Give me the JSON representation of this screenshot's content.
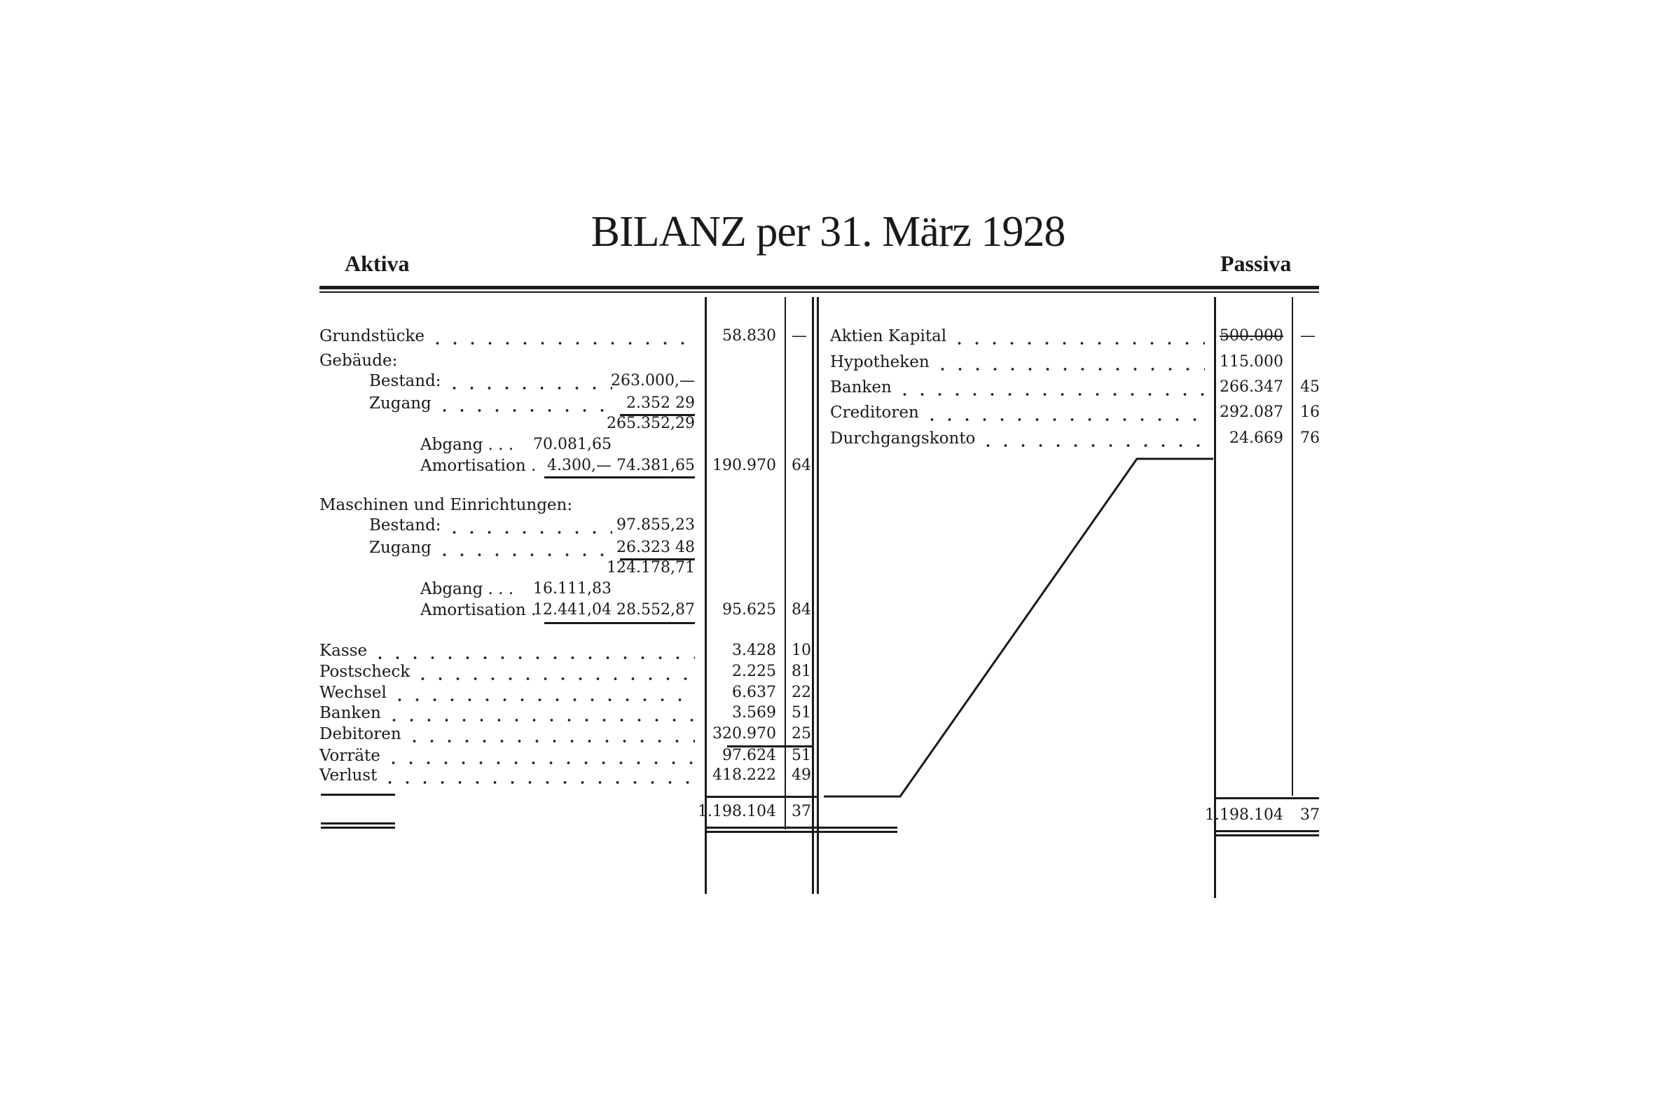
{
  "title": "BILANZ per 31. März 1928",
  "aktiva_label": "Aktiva",
  "passiva_label": "Passiva",
  "aktiva": {
    "grundstuecke": {
      "label": "Grundstücke",
      "value": "58.830",
      "cents": "—"
    },
    "gebaeude": {
      "label": "Gebäude:",
      "bestand": {
        "label": "Bestand:",
        "amount": "263.000,—"
      },
      "zugang": {
        "label": "Zugang",
        "amount": "2.352 29"
      },
      "subtotal": "265.352,29",
      "abgang": {
        "label": "Abgang . . .",
        "amount": "70.081,65"
      },
      "amortisation": {
        "label": "Amortisation .",
        "amount": "4.300,—",
        "sum": "74.381,65"
      },
      "value": "190.970",
      "cents": "64"
    },
    "maschinen": {
      "label": "Maschinen und Einrichtungen:",
      "bestand": {
        "label": "Bestand:",
        "amount": "97.855,23"
      },
      "zugang": {
        "label": "Zugang",
        "amount": "26.323 48"
      },
      "subtotal": "124.178,71",
      "abgang": {
        "label": "Abgang . . .",
        "amount": "16.111,83"
      },
      "amortisation": {
        "label": "Amortisation .",
        "amount": "12.441,04",
        "sum": "28.552,87"
      },
      "value": "95.625",
      "cents": "84"
    },
    "items": [
      {
        "label": "Kasse",
        "value": "3.428",
        "cents": "10"
      },
      {
        "label": "Postscheck",
        "value": "2.225",
        "cents": "81"
      },
      {
        "label": "Wechsel",
        "value": "6.637",
        "cents": "22"
      },
      {
        "label": "Banken",
        "value": "3.569",
        "cents": "51"
      },
      {
        "label": "Debitoren",
        "value": "320.970",
        "cents": "25"
      },
      {
        "label": "Vorräte",
        "value": "97.624",
        "cents": "51"
      },
      {
        "label": "Verlust",
        "value": "418.222",
        "cents": "49"
      }
    ],
    "total": {
      "value": "1.198.104",
      "cents": "37"
    }
  },
  "passiva": {
    "items": [
      {
        "label": "Aktien Kapital",
        "value": "500.000",
        "cents": "—",
        "struck": true
      },
      {
        "label": "Hypotheken",
        "value": "115.000",
        "cents": ""
      },
      {
        "label": "Banken",
        "value": "266.347",
        "cents": "45"
      },
      {
        "label": "Creditoren",
        "value": "292.087",
        "cents": "16"
      },
      {
        "label": "Durchgangskonto",
        "value": "24.669",
        "cents": "76"
      }
    ],
    "total": {
      "value": "1.198.104",
      "cents": "37"
    }
  }
}
